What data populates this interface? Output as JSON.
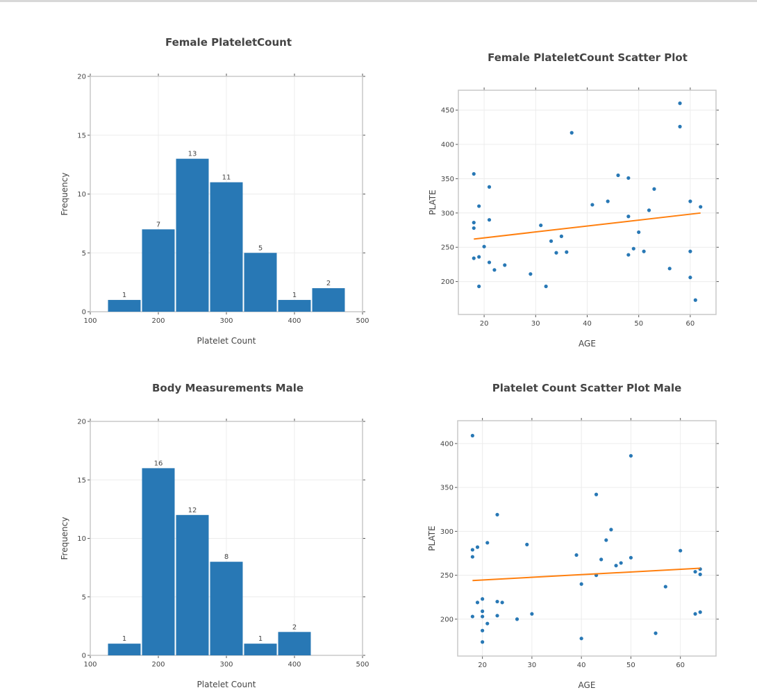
{
  "chart_data": [
    {
      "type": "bar",
      "title": "Female PlateletCount",
      "xlabel": "Platelet Count",
      "ylabel": "Frequency",
      "bins": [
        [
          125,
          175
        ],
        [
          175,
          225
        ],
        [
          225,
          275
        ],
        [
          275,
          325
        ],
        [
          325,
          375
        ],
        [
          375,
          425
        ],
        [
          425,
          475
        ]
      ],
      "values": [
        1,
        7,
        13,
        11,
        5,
        1,
        2
      ],
      "xlim": [
        100,
        500
      ],
      "ylim": [
        0,
        20
      ],
      "xticks": [
        100,
        200,
        300,
        400,
        500
      ],
      "yticks": [
        0,
        5,
        10,
        15,
        20
      ],
      "grid": true,
      "color": "#2878b5"
    },
    {
      "type": "scatter",
      "title": "Female PlateletCount Scatter Plot",
      "xlabel": "AGE",
      "ylabel": "PLATE",
      "xlim": [
        15,
        65
      ],
      "ylim": [
        152,
        479
      ],
      "xticks": [
        20,
        30,
        40,
        50,
        60
      ],
      "yticks": [
        200,
        250,
        300,
        350,
        400,
        450
      ],
      "grid": true,
      "point_color": "#2878b5",
      "line_color": "#ff7f0e",
      "points": [
        [
          18,
          357
        ],
        [
          21,
          338
        ],
        [
          19,
          310
        ],
        [
          21,
          290
        ],
        [
          18,
          286
        ],
        [
          18,
          278
        ],
        [
          20,
          251
        ],
        [
          18,
          234
        ],
        [
          19,
          236
        ],
        [
          21,
          228
        ],
        [
          22,
          217
        ],
        [
          24,
          224
        ],
        [
          19,
          193
        ],
        [
          29,
          211
        ],
        [
          31,
          282
        ],
        [
          32,
          193
        ],
        [
          33,
          259
        ],
        [
          34,
          242
        ],
        [
          35,
          266
        ],
        [
          36,
          243
        ],
        [
          37,
          417
        ],
        [
          41,
          312
        ],
        [
          44,
          317
        ],
        [
          46,
          355
        ],
        [
          48,
          351
        ],
        [
          48,
          295
        ],
        [
          48,
          239
        ],
        [
          49,
          248
        ],
        [
          50,
          272
        ],
        [
          51,
          244
        ],
        [
          52,
          304
        ],
        [
          53,
          335
        ],
        [
          56,
          219
        ],
        [
          58,
          460
        ],
        [
          58,
          426
        ],
        [
          60,
          317
        ],
        [
          60,
          244
        ],
        [
          60,
          206
        ],
        [
          61,
          173
        ],
        [
          62,
          309
        ]
      ],
      "fit_line": [
        [
          18,
          262
        ],
        [
          62,
          300
        ]
      ]
    },
    {
      "type": "bar",
      "title": "Body Measurements Male",
      "xlabel": "Platelet Count",
      "ylabel": "Frequency",
      "bins": [
        [
          125,
          175
        ],
        [
          175,
          225
        ],
        [
          225,
          275
        ],
        [
          275,
          325
        ],
        [
          325,
          375
        ],
        [
          375,
          425
        ]
      ],
      "values": [
        1,
        16,
        12,
        8,
        1,
        2
      ],
      "xlim": [
        100,
        500
      ],
      "ylim": [
        0,
        20
      ],
      "xticks": [
        100,
        200,
        300,
        400,
        500
      ],
      "yticks": [
        0,
        5,
        10,
        15,
        20
      ],
      "grid": true,
      "color": "#2878b5"
    },
    {
      "type": "scatter",
      "title": "Platelet Count Scatter Plot Male",
      "xlabel": "AGE",
      "ylabel": "PLATE",
      "xlim": [
        15,
        67.2
      ],
      "ylim": [
        158,
        426
      ],
      "xticks": [
        20,
        30,
        40,
        50,
        60
      ],
      "yticks": [
        200,
        250,
        300,
        350,
        400
      ],
      "grid": true,
      "point_color": "#2878b5",
      "line_color": "#ff7f0e",
      "points": [
        [
          18,
          409
        ],
        [
          18,
          279
        ],
        [
          18,
          271
        ],
        [
          18,
          203
        ],
        [
          19,
          282
        ],
        [
          19,
          219
        ],
        [
          20,
          223
        ],
        [
          20,
          209
        ],
        [
          20,
          203
        ],
        [
          20,
          187
        ],
        [
          20,
          174
        ],
        [
          21,
          287
        ],
        [
          21,
          195
        ],
        [
          23,
          319
        ],
        [
          23,
          220
        ],
        [
          23,
          204
        ],
        [
          24,
          219
        ],
        [
          27,
          200
        ],
        [
          29,
          285
        ],
        [
          30,
          206
        ],
        [
          39,
          273
        ],
        [
          40,
          240
        ],
        [
          40,
          178
        ],
        [
          43,
          342
        ],
        [
          43,
          250
        ],
        [
          44,
          268
        ],
        [
          45,
          290
        ],
        [
          46,
          302
        ],
        [
          47,
          261
        ],
        [
          48,
          264
        ],
        [
          50,
          386
        ],
        [
          50,
          270
        ],
        [
          55,
          184
        ],
        [
          57,
          237
        ],
        [
          60,
          278
        ],
        [
          63,
          254
        ],
        [
          63,
          206
        ],
        [
          64,
          257
        ],
        [
          64,
          251
        ],
        [
          64,
          208
        ]
      ],
      "fit_line": [
        [
          18,
          244
        ],
        [
          64,
          258
        ]
      ]
    }
  ]
}
